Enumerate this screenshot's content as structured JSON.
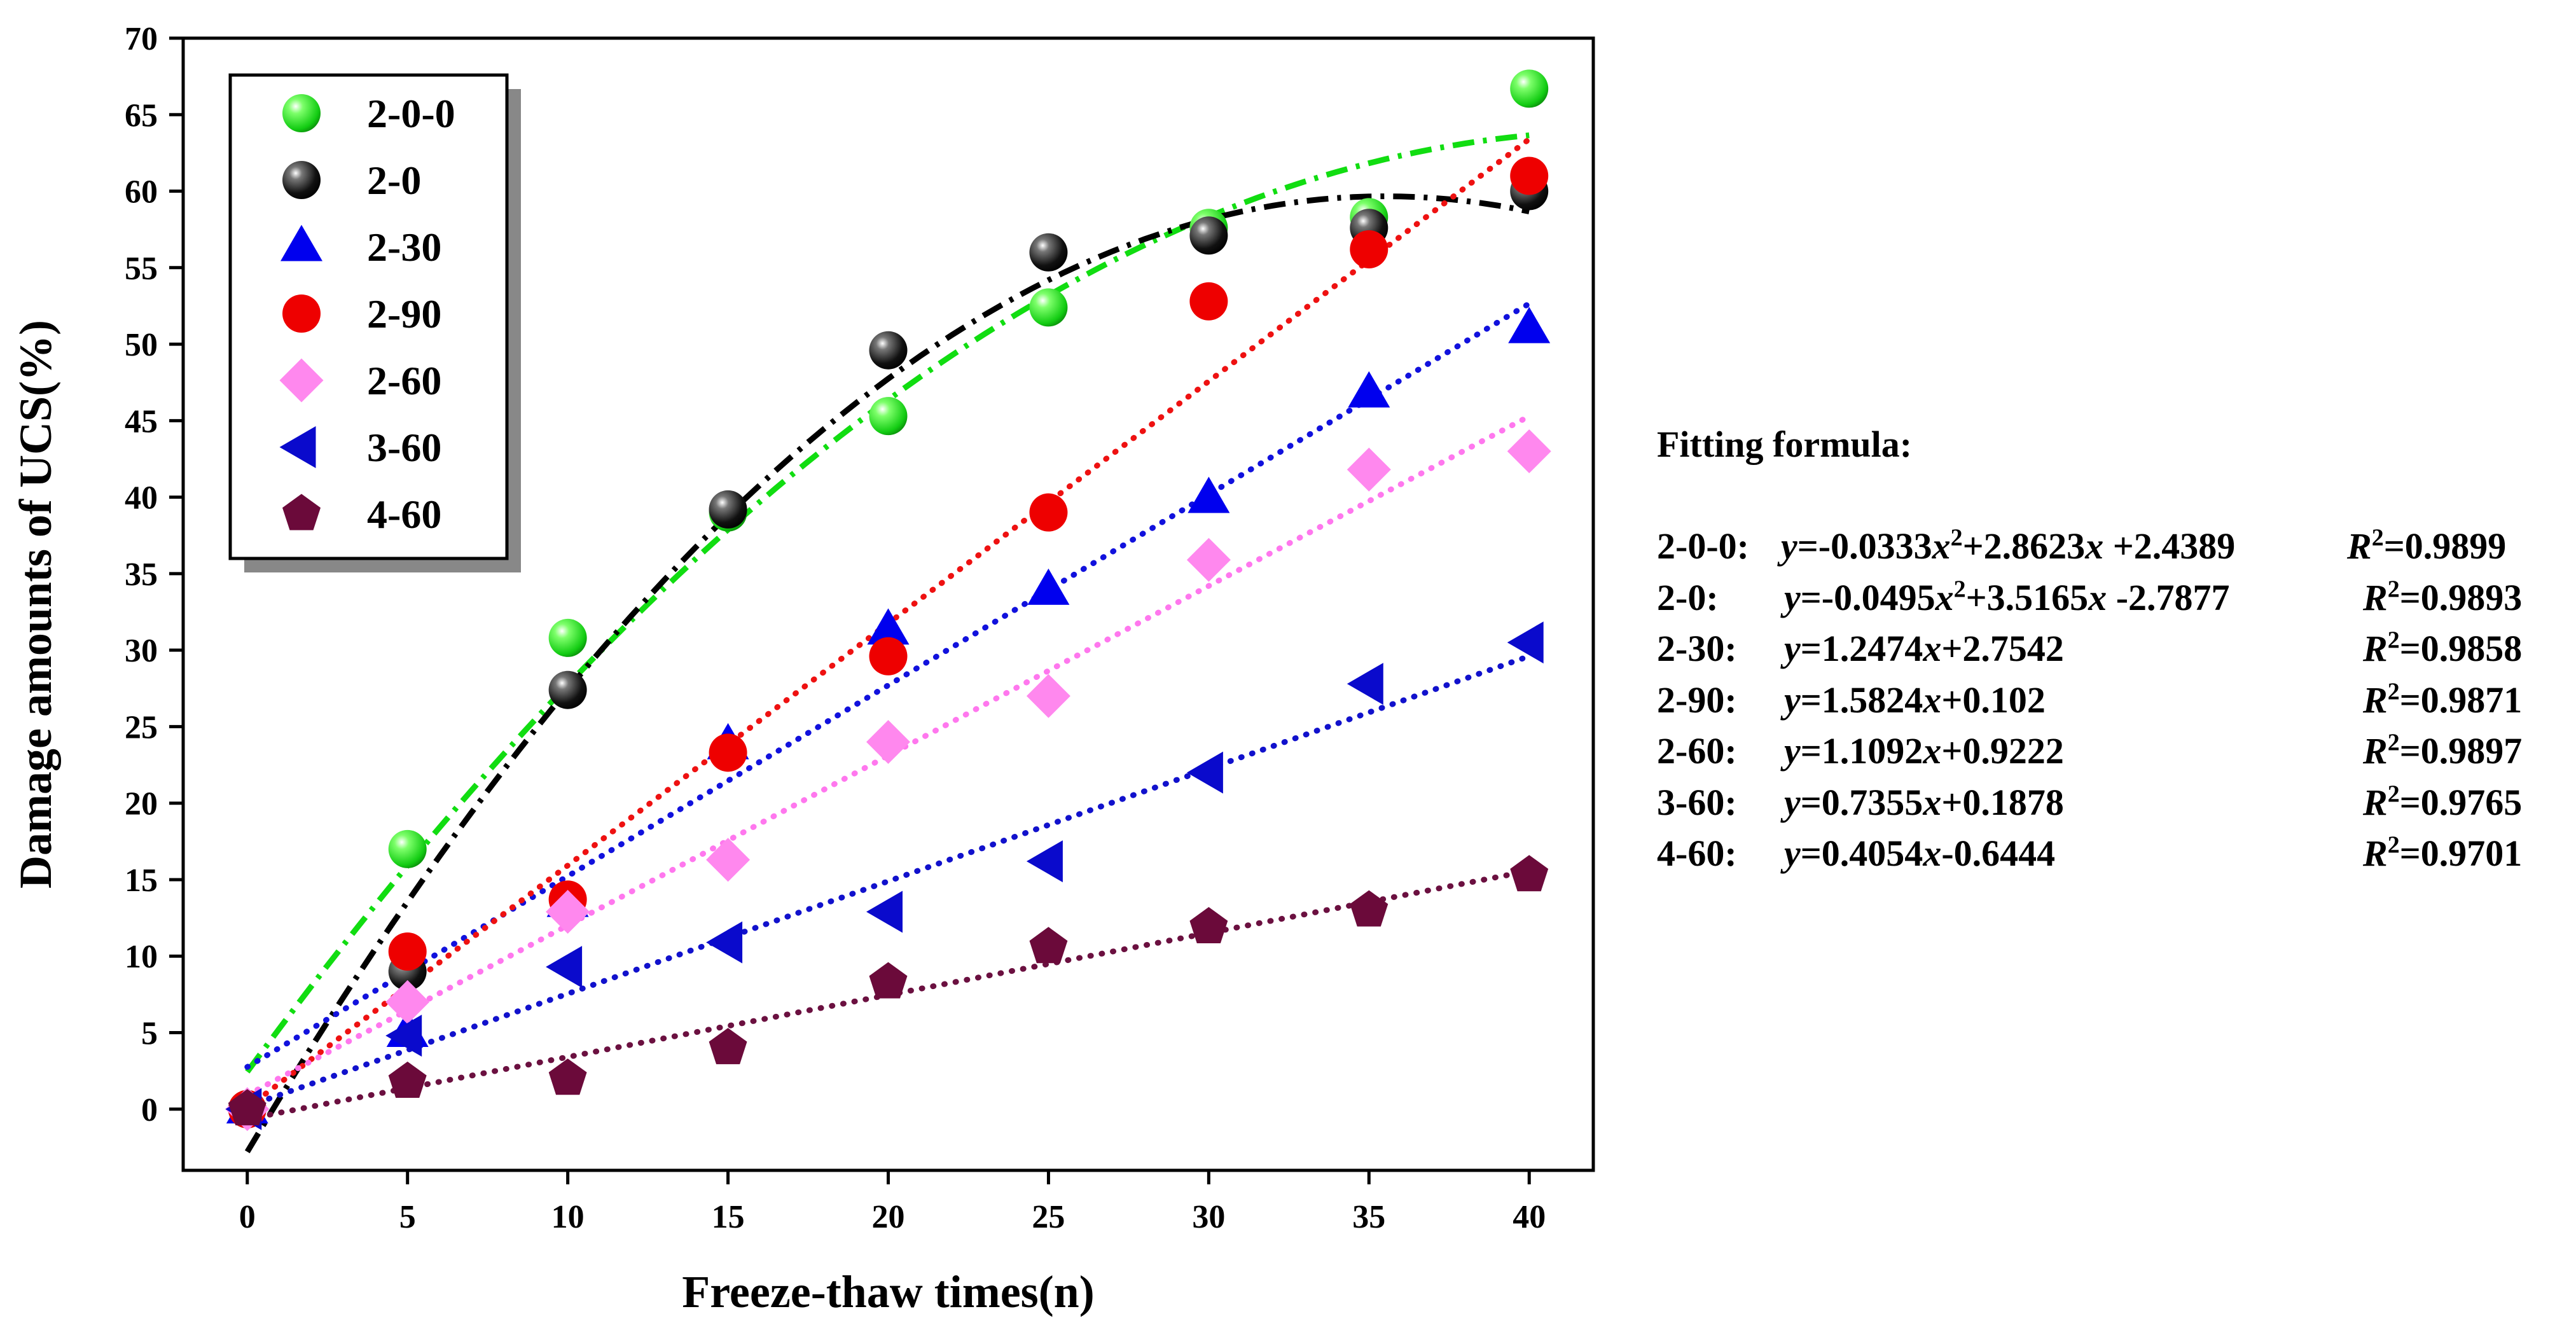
{
  "chart_data": {
    "type": "scatter",
    "title": "",
    "xlabel": "Freeze-thaw times(n)",
    "ylabel": "Damage amounts of UCS(%)",
    "xlim": [
      -2,
      42
    ],
    "ylim": [
      -4,
      70
    ],
    "x_ticks": [
      "0",
      "5",
      "10",
      "15",
      "20",
      "25",
      "30",
      "35",
      "40"
    ],
    "y_ticks": [
      "0",
      "5",
      "10",
      "15",
      "20",
      "25",
      "30",
      "35",
      "40",
      "45",
      "50",
      "55",
      "60",
      "65",
      "70"
    ],
    "x": [
      0,
      5,
      10,
      15,
      20,
      25,
      30,
      35,
      40
    ],
    "legend_position": "top-left",
    "series": [
      {
        "name": "2-0-0",
        "marker": "sphere",
        "color": "#22dd22",
        "fit_color": "#11dd11",
        "fit_style": "dashdot",
        "values": [
          0,
          17,
          30.8,
          39,
          45.3,
          52.4,
          57.6,
          58.3,
          66.7
        ],
        "fit": {
          "type": "poly2",
          "a": -0.0333,
          "b": 2.8623,
          "c": 2.4389
        }
      },
      {
        "name": "2-0",
        "marker": "sphere",
        "color": "#111111",
        "fit_color": "#000000",
        "fit_style": "dashdot",
        "values": [
          0,
          9,
          27.4,
          39.2,
          49.6,
          56,
          57.1,
          57.6,
          60
        ],
        "fit": {
          "type": "poly2",
          "a": -0.0495,
          "b": 3.5165,
          "c": -2.7877
        }
      },
      {
        "name": "2-30",
        "marker": "triangle-up",
        "color": "#0000ee",
        "fit_color": "#1111dd",
        "fit_style": "dotted",
        "values": [
          0,
          5,
          13.5,
          23.8,
          31.3,
          33.9,
          39.9,
          46.8,
          51
        ],
        "fit": {
          "type": "linear",
          "a": 1.2474,
          "b": 2.7542
        }
      },
      {
        "name": "2-90",
        "marker": "circle",
        "color": "#ee0000",
        "fit_color": "#ee1111",
        "fit_style": "dotted",
        "values": [
          0,
          10.3,
          13.7,
          23.3,
          29.6,
          39,
          52.8,
          56.2,
          61
        ],
        "fit": {
          "type": "linear",
          "a": 1.5824,
          "b": 0.102
        }
      },
      {
        "name": "2-60",
        "marker": "diamond",
        "color": "#ff88ee",
        "fit_color": "#ff77ee",
        "fit_style": "dotted",
        "values": [
          0,
          7,
          12.9,
          16.3,
          24,
          27,
          35.9,
          41.8,
          43
        ],
        "fit": {
          "type": "linear",
          "a": 1.1092,
          "b": 0.9222
        }
      },
      {
        "name": "3-60",
        "marker": "triangle-left",
        "color": "#0a0acc",
        "fit_color": "#1111cc",
        "fit_style": "dotted",
        "values": [
          0,
          4.8,
          9.3,
          10.9,
          12.9,
          16.2,
          22,
          27.8,
          30.5
        ],
        "fit": {
          "type": "linear",
          "a": 0.7355,
          "b": 0.1878
        }
      },
      {
        "name": "4-60",
        "marker": "pentagon",
        "color": "#6b0a3a",
        "fit_color": "#6b1040",
        "fit_style": "dotted",
        "values": [
          0,
          1.8,
          2,
          4,
          8.3,
          10.6,
          11.9,
          13,
          15.3
        ],
        "fit": {
          "type": "linear",
          "a": 0.4054,
          "b": -0.6444
        }
      }
    ]
  },
  "formula_panel": {
    "title": "Fitting formula:",
    "rows": [
      {
        "label": "2-0-0:",
        "eq": [
          [
            "i",
            "y"
          ],
          [
            "t",
            "=-0.0333"
          ],
          [
            "i",
            "x"
          ],
          [
            "s",
            "2"
          ],
          [
            "t",
            "+2.8623"
          ],
          [
            "i",
            "x"
          ],
          [
            "t",
            " +2.4389"
          ]
        ],
        "r2": "=0.9899"
      },
      {
        "label": "2-0:",
        "eq": [
          [
            "i",
            "y"
          ],
          [
            "t",
            "=-0.0495"
          ],
          [
            "i",
            "x"
          ],
          [
            "s",
            "2"
          ],
          [
            "t",
            "+3.5165"
          ],
          [
            "i",
            "x"
          ],
          [
            "t",
            " -2.7877"
          ]
        ],
        "r2": "=0.9893"
      },
      {
        "label": "2-30:",
        "eq": [
          [
            "i",
            "y"
          ],
          [
            "t",
            "=1.2474"
          ],
          [
            "i",
            "x"
          ],
          [
            "t",
            "+2.7542"
          ]
        ],
        "r2": "=0.9858"
      },
      {
        "label": "2-90:",
        "eq": [
          [
            "i",
            "y"
          ],
          [
            "t",
            "=1.5824"
          ],
          [
            "i",
            "x"
          ],
          [
            "t",
            "+0.102"
          ]
        ],
        "r2": "=0.9871"
      },
      {
        "label": "2-60:",
        "eq": [
          [
            "i",
            "y"
          ],
          [
            "t",
            "=1.1092"
          ],
          [
            "i",
            "x"
          ],
          [
            "t",
            "+0.9222"
          ]
        ],
        "r2": "=0.9897"
      },
      {
        "label": "3-60:",
        "eq": [
          [
            "i",
            "y"
          ],
          [
            "t",
            "=0.7355"
          ],
          [
            "i",
            "x"
          ],
          [
            "t",
            "+0.1878"
          ]
        ],
        "r2": "=0.9765"
      },
      {
        "label": "4-60:",
        "eq": [
          [
            "i",
            "y"
          ],
          [
            "t",
            "=0.4054"
          ],
          [
            "i",
            "x"
          ],
          [
            "t",
            "-0.6444"
          ]
        ],
        "r2": "=0.9701"
      }
    ],
    "r2_symbol": "R",
    "r2_sup": "2"
  }
}
